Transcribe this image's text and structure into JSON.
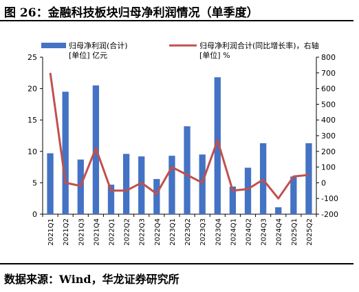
{
  "header": {
    "title": "图 26：金融科技板块归母净利润情况（单季度）"
  },
  "footer": {
    "source": "数据来源：Wind，华龙证券研究所"
  },
  "chart_data": {
    "type": "bar",
    "categories": [
      "2021Q1",
      "2021Q2",
      "2021Q3",
      "2021Q4",
      "2022Q1",
      "2022Q2",
      "2022Q3",
      "2022Q4",
      "2023Q1",
      "2023Q2",
      "2023Q3",
      "2023Q4",
      "2024Q1",
      "2024Q2",
      "2024Q3",
      "2024Q4",
      "2025Q1",
      "2025Q2"
    ],
    "series": [
      {
        "name": "归母净利润(合计)",
        "unit": "[单位] 亿元",
        "type": "bar",
        "axis": "left",
        "color": "#4472C4",
        "values": [
          9.7,
          19.5,
          8.7,
          20.5,
          4.7,
          9.6,
          9.2,
          5.6,
          9.3,
          14.0,
          9.5,
          21.8,
          4.4,
          7.4,
          11.3,
          1.1,
          6.0,
          11.3
        ]
      },
      {
        "name": "归母净利润合计(同比增长率)，右轴",
        "unit": "[单位] %",
        "type": "line",
        "axis": "right",
        "color": "#C0504D",
        "values": [
          700,
          0,
          -20,
          220,
          -50,
          -50,
          0,
          -70,
          100,
          50,
          0,
          270,
          -50,
          -40,
          20,
          -100,
          40,
          50
        ]
      }
    ],
    "left_axis": {
      "min": 0,
      "max": 25,
      "ticks": [
        0,
        5,
        10,
        15,
        20,
        25
      ]
    },
    "right_axis": {
      "min": -200,
      "max": 800,
      "ticks": [
        -200,
        -100,
        0,
        100,
        200,
        300,
        400,
        500,
        600,
        700,
        800
      ]
    },
    "legend_position": "top",
    "grid": false
  }
}
